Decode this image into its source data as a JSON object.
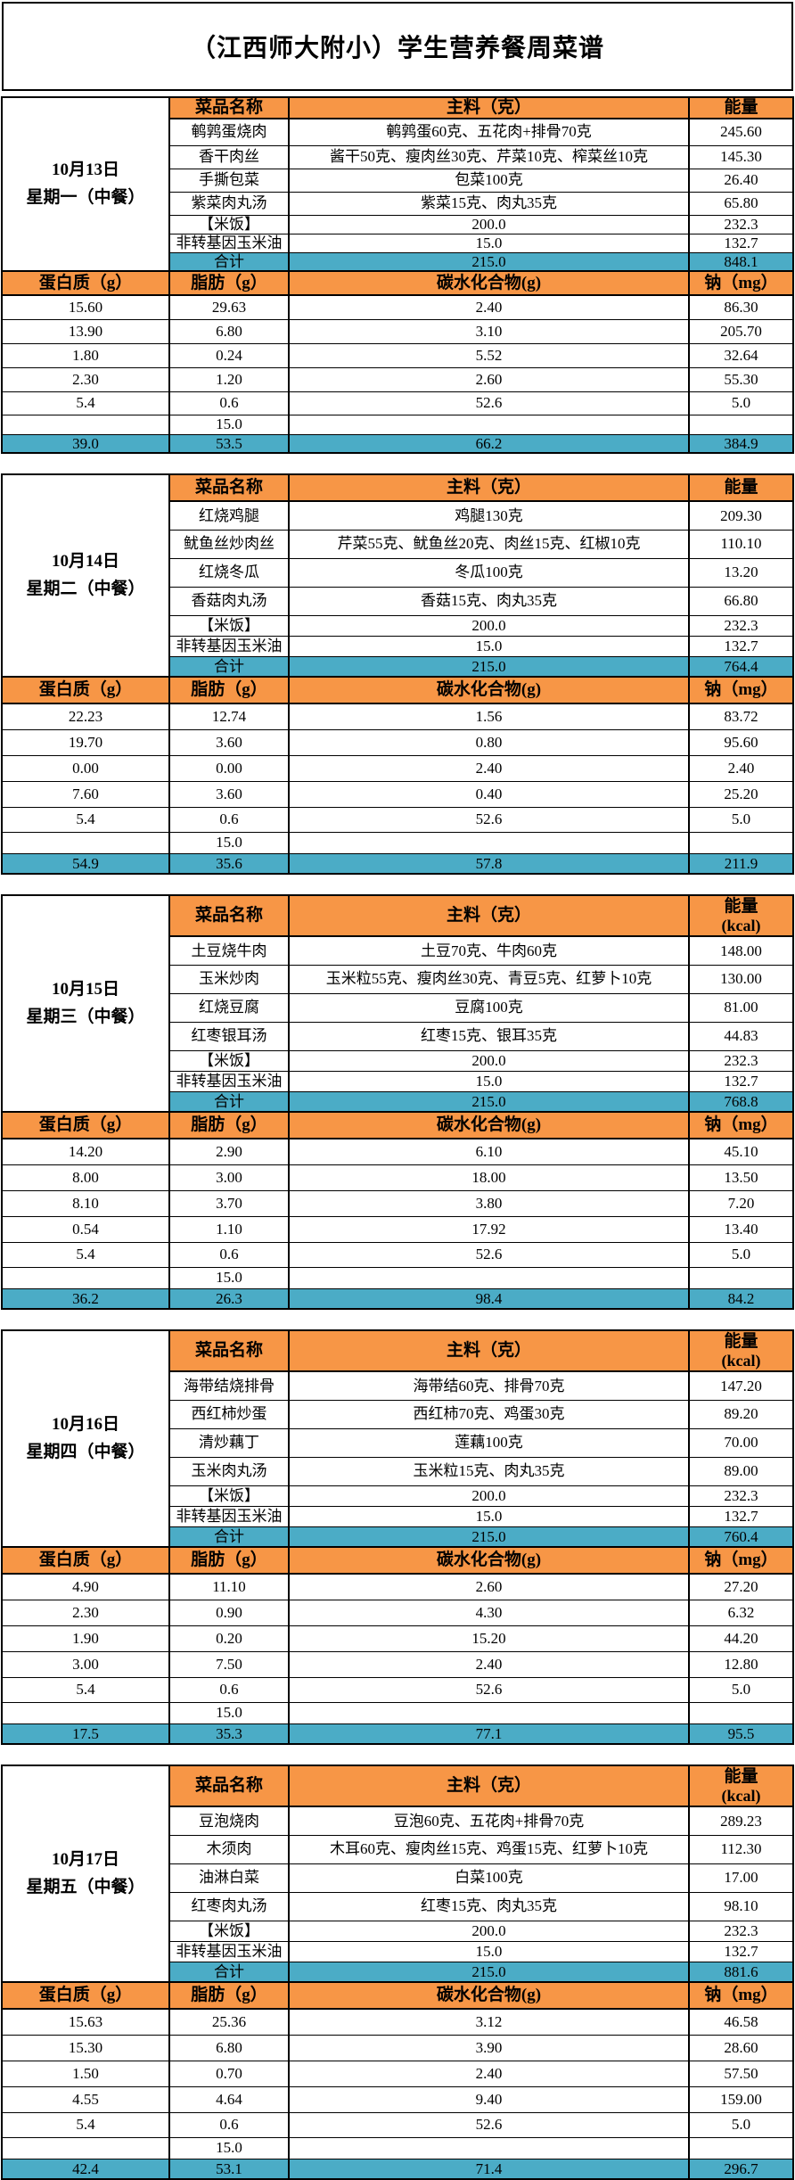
{
  "title": "（江西师大附小）学生营养餐周菜谱",
  "colors": {
    "header_bg": "#F79646",
    "total_bg": "#4BACC6",
    "border": "#000000",
    "text": "#000000"
  },
  "menu_header": {
    "dish": "菜品名称",
    "ingredients": "主料（克）",
    "energy": "能量"
  },
  "nutrient_header": {
    "protein": "蛋白质（g）",
    "fat": "脂肪（g）",
    "carbs": "碳水化合物(g)",
    "sodium": "钠（mg）"
  },
  "total_label": "合计",
  "days": [
    {
      "date": "10月13日",
      "weekday": "星期一（中餐）",
      "energy_unit": "",
      "dishes": [
        {
          "name": "鹌鹑蛋烧肉",
          "ingredients": "鹌鹑蛋60克、五花肉+排骨70克",
          "energy": "245.60"
        },
        {
          "name": "香干肉丝",
          "ingredients": "酱干50克、瘦肉丝30克、芹菜10克、榨菜丝10克",
          "energy": "145.30"
        },
        {
          "name": "手撕包菜",
          "ingredients": "包菜100克",
          "energy": "26.40"
        },
        {
          "name": "紫菜肉丸汤",
          "ingredients": "紫菜15克、肉丸35克",
          "energy": "65.80"
        },
        {
          "name": "【米饭】",
          "ingredients": "200.0",
          "energy": "232.3"
        },
        {
          "name": "非转基因玉米油",
          "ingredients": "15.0",
          "energy": "132.7"
        }
      ],
      "dish_total": {
        "ingredients": "215.0",
        "energy": "848.1"
      },
      "nutrients": [
        [
          "15.60",
          "29.63",
          "2.40",
          "86.30"
        ],
        [
          "13.90",
          "6.80",
          "3.10",
          "205.70"
        ],
        [
          "1.80",
          "0.24",
          "5.52",
          "32.64"
        ],
        [
          "2.30",
          "1.20",
          "2.60",
          "55.30"
        ],
        [
          "5.4",
          "0.6",
          "52.6",
          "5.0"
        ],
        [
          "",
          "15.0",
          "",
          ""
        ]
      ],
      "nutrient_total": [
        "39.0",
        "53.5",
        "66.2",
        "384.9"
      ]
    },
    {
      "date": "10月14日",
      "weekday": "星期二（中餐）",
      "energy_unit": "",
      "dishes": [
        {
          "name": "红烧鸡腿",
          "ingredients": "鸡腿130克",
          "energy": "209.30"
        },
        {
          "name": "鱿鱼丝炒肉丝",
          "ingredients": "芹菜55克、鱿鱼丝20克、肉丝15克、红椒10克",
          "energy": "110.10"
        },
        {
          "name": "红烧冬瓜",
          "ingredients": "冬瓜100克",
          "energy": "13.20"
        },
        {
          "name": "香菇肉丸汤",
          "ingredients": "香菇15克、肉丸35克",
          "energy": "66.80"
        },
        {
          "name": "【米饭】",
          "ingredients": "200.0",
          "energy": "232.3"
        },
        {
          "name": "非转基因玉米油",
          "ingredients": "15.0",
          "energy": "132.7"
        }
      ],
      "dish_total": {
        "ingredients": "215.0",
        "energy": "764.4"
      },
      "nutrients": [
        [
          "22.23",
          "12.74",
          "1.56",
          "83.72"
        ],
        [
          "19.70",
          "3.60",
          "0.80",
          "95.60"
        ],
        [
          "0.00",
          "0.00",
          "2.40",
          "2.40"
        ],
        [
          "7.60",
          "3.60",
          "0.40",
          "25.20"
        ],
        [
          "5.4",
          "0.6",
          "52.6",
          "5.0"
        ],
        [
          "",
          "15.0",
          "",
          ""
        ]
      ],
      "nutrient_total": [
        "54.9",
        "35.6",
        "57.8",
        "211.9"
      ]
    },
    {
      "date": "10月15日",
      "weekday": "星期三（中餐）",
      "energy_unit": "(kcal)",
      "dishes": [
        {
          "name": "土豆烧牛肉",
          "ingredients": "土豆70克、牛肉60克",
          "energy": "148.00"
        },
        {
          "name": "玉米炒肉",
          "ingredients": "玉米粒55克、瘦肉丝30克、青豆5克、红萝卜10克",
          "energy": "130.00"
        },
        {
          "name": "红烧豆腐",
          "ingredients": "豆腐100克",
          "energy": "81.00"
        },
        {
          "name": "红枣银耳汤",
          "ingredients": "红枣15克、银耳35克",
          "energy": "44.83"
        },
        {
          "name": "【米饭】",
          "ingredients": "200.0",
          "energy": "232.3"
        },
        {
          "name": "非转基因玉米油",
          "ingredients": "15.0",
          "energy": "132.7"
        }
      ],
      "dish_total": {
        "ingredients": "215.0",
        "energy": "768.8"
      },
      "nutrients": [
        [
          "14.20",
          "2.90",
          "6.10",
          "45.10"
        ],
        [
          "8.00",
          "3.00",
          "18.00",
          "13.50"
        ],
        [
          "8.10",
          "3.70",
          "3.80",
          "7.20"
        ],
        [
          "0.54",
          "1.10",
          "17.92",
          "13.40"
        ],
        [
          "5.4",
          "0.6",
          "52.6",
          "5.0"
        ],
        [
          "",
          "15.0",
          "",
          ""
        ]
      ],
      "nutrient_total": [
        "36.2",
        "26.3",
        "98.4",
        "84.2"
      ]
    },
    {
      "date": "10月16日",
      "weekday": "星期四（中餐）",
      "energy_unit": "(kcal)",
      "dishes": [
        {
          "name": "海带结烧排骨",
          "ingredients": "海带结60克、排骨70克",
          "energy": "147.20"
        },
        {
          "name": "西红柿炒蛋",
          "ingredients": "西红柿70克、鸡蛋30克",
          "energy": "89.20"
        },
        {
          "name": "清炒藕丁",
          "ingredients": "莲藕100克",
          "energy": "70.00"
        },
        {
          "name": "玉米肉丸汤",
          "ingredients": "玉米粒15克、肉丸35克",
          "energy": "89.00"
        },
        {
          "name": "【米饭】",
          "ingredients": "200.0",
          "energy": "232.3"
        },
        {
          "name": "非转基因玉米油",
          "ingredients": "15.0",
          "energy": "132.7"
        }
      ],
      "dish_total": {
        "ingredients": "215.0",
        "energy": "760.4"
      },
      "nutrients": [
        [
          "4.90",
          "11.10",
          "2.60",
          "27.20"
        ],
        [
          "2.30",
          "0.90",
          "4.30",
          "6.32"
        ],
        [
          "1.90",
          "0.20",
          "15.20",
          "44.20"
        ],
        [
          "3.00",
          "7.50",
          "2.40",
          "12.80"
        ],
        [
          "5.4",
          "0.6",
          "52.6",
          "5.0"
        ],
        [
          "",
          "15.0",
          "",
          ""
        ]
      ],
      "nutrient_total": [
        "17.5",
        "35.3",
        "77.1",
        "95.5"
      ]
    },
    {
      "date": "10月17日",
      "weekday": "星期五（中餐）",
      "energy_unit": "(kcal)",
      "dishes": [
        {
          "name": "豆泡烧肉",
          "ingredients": "豆泡60克、五花肉+排骨70克",
          "energy": "289.23"
        },
        {
          "name": "木须肉",
          "ingredients": "木耳60克、瘦肉丝15克、鸡蛋15克、红萝卜10克",
          "energy": "112.30"
        },
        {
          "name": "油淋白菜",
          "ingredients": "白菜100克",
          "energy": "17.00"
        },
        {
          "name": "红枣肉丸汤",
          "ingredients": "红枣15克、肉丸35克",
          "energy": "98.10"
        },
        {
          "name": "【米饭】",
          "ingredients": "200.0",
          "energy": "232.3"
        },
        {
          "name": "非转基因玉米油",
          "ingredients": "15.0",
          "energy": "132.7"
        }
      ],
      "dish_total": {
        "ingredients": "215.0",
        "energy": "881.6"
      },
      "nutrients": [
        [
          "15.63",
          "25.36",
          "3.12",
          "46.58"
        ],
        [
          "15.30",
          "6.80",
          "3.90",
          "28.60"
        ],
        [
          "1.50",
          "0.70",
          "2.40",
          "57.50"
        ],
        [
          "4.55",
          "4.64",
          "9.40",
          "159.00"
        ],
        [
          "5.4",
          "0.6",
          "52.6",
          "5.0"
        ],
        [
          "",
          "15.0",
          "",
          ""
        ]
      ],
      "nutrient_total": [
        "42.4",
        "53.1",
        "71.4",
        "296.7"
      ]
    }
  ]
}
